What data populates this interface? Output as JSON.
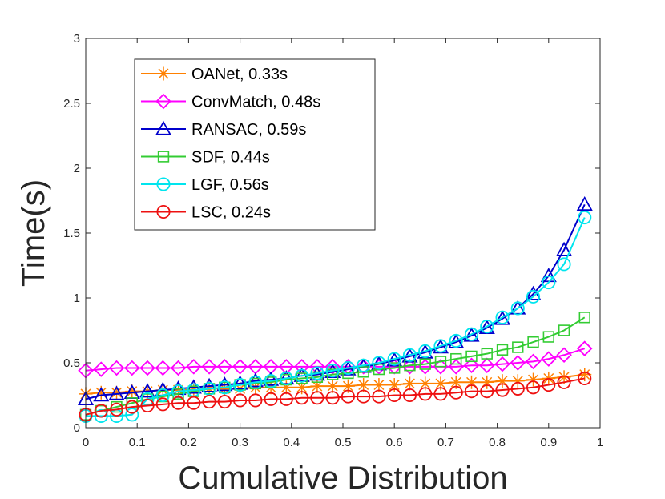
{
  "chart_data": {
    "type": "line",
    "title": "",
    "xlabel": "Cumulative Distribution",
    "ylabel": "Time(s)",
    "xlim": [
      0,
      1
    ],
    "ylim": [
      0,
      3
    ],
    "xticks": [
      "0",
      "0.1",
      "0.2",
      "0.3",
      "0.4",
      "0.5",
      "0.6",
      "0.7",
      "0.8",
      "0.9",
      "1"
    ],
    "yticks": [
      "0",
      "0.5",
      "1",
      "1.5",
      "2",
      "2.5",
      "3"
    ],
    "grid": false,
    "legend_position": "top-left",
    "x": [
      0,
      0.03,
      0.06,
      0.09,
      0.12,
      0.15,
      0.18,
      0.21,
      0.24,
      0.27,
      0.3,
      0.33,
      0.36,
      0.39,
      0.42,
      0.45,
      0.48,
      0.51,
      0.54,
      0.57,
      0.6,
      0.63,
      0.66,
      0.69,
      0.72,
      0.75,
      0.78,
      0.81,
      0.84,
      0.87,
      0.9,
      0.93,
      0.97
    ],
    "series": [
      {
        "name": "OANet, 0.33s",
        "color": "#ff8000",
        "marker": "asterisk",
        "values": [
          0.26,
          0.27,
          0.27,
          0.28,
          0.28,
          0.29,
          0.29,
          0.29,
          0.3,
          0.3,
          0.3,
          0.31,
          0.31,
          0.31,
          0.31,
          0.32,
          0.32,
          0.32,
          0.33,
          0.33,
          0.33,
          0.34,
          0.34,
          0.34,
          0.35,
          0.35,
          0.35,
          0.36,
          0.36,
          0.37,
          0.38,
          0.39,
          0.41
        ]
      },
      {
        "name": "ConvMatch, 0.48s",
        "color": "#ff00ff",
        "marker": "diamond",
        "values": [
          0.44,
          0.45,
          0.46,
          0.46,
          0.46,
          0.46,
          0.46,
          0.47,
          0.47,
          0.47,
          0.47,
          0.47,
          0.47,
          0.47,
          0.47,
          0.47,
          0.47,
          0.47,
          0.47,
          0.47,
          0.47,
          0.47,
          0.47,
          0.47,
          0.47,
          0.48,
          0.48,
          0.49,
          0.5,
          0.51,
          0.53,
          0.56,
          0.61
        ]
      },
      {
        "name": "RANSAC,  0.59s",
        "color": "#0000cc",
        "marker": "triangle",
        "values": [
          0.22,
          0.25,
          0.26,
          0.27,
          0.28,
          0.29,
          0.3,
          0.31,
          0.32,
          0.33,
          0.34,
          0.36,
          0.37,
          0.38,
          0.4,
          0.41,
          0.43,
          0.45,
          0.47,
          0.49,
          0.52,
          0.55,
          0.58,
          0.62,
          0.66,
          0.71,
          0.77,
          0.84,
          0.92,
          1.03,
          1.17,
          1.37,
          1.72
        ]
      },
      {
        "name": "SDF,  0.44s",
        "color": "#33cc33",
        "marker": "square",
        "values": [
          0.1,
          0.13,
          0.16,
          0.19,
          0.22,
          0.24,
          0.26,
          0.28,
          0.3,
          0.31,
          0.33,
          0.34,
          0.35,
          0.37,
          0.38,
          0.39,
          0.41,
          0.42,
          0.43,
          0.45,
          0.46,
          0.48,
          0.49,
          0.51,
          0.53,
          0.55,
          0.57,
          0.6,
          0.62,
          0.66,
          0.7,
          0.75,
          0.85
        ]
      },
      {
        "name": "LGF, 0.56s",
        "color": "#00e5ee",
        "marker": "circle",
        "values": [
          0.09,
          0.09,
          0.09,
          0.1,
          0.22,
          0.25,
          0.28,
          0.29,
          0.3,
          0.31,
          0.33,
          0.35,
          0.36,
          0.38,
          0.4,
          0.42,
          0.44,
          0.46,
          0.48,
          0.5,
          0.53,
          0.56,
          0.59,
          0.63,
          0.67,
          0.72,
          0.78,
          0.85,
          0.92,
          1.01,
          1.12,
          1.26,
          1.62
        ]
      },
      {
        "name": "LSC,  0.24s",
        "color": "#ee1111",
        "marker": "circle",
        "values": [
          0.1,
          0.13,
          0.14,
          0.16,
          0.17,
          0.18,
          0.19,
          0.19,
          0.2,
          0.2,
          0.21,
          0.21,
          0.22,
          0.22,
          0.23,
          0.23,
          0.23,
          0.24,
          0.24,
          0.24,
          0.25,
          0.25,
          0.26,
          0.26,
          0.27,
          0.28,
          0.28,
          0.29,
          0.3,
          0.31,
          0.33,
          0.35,
          0.38
        ]
      }
    ]
  }
}
